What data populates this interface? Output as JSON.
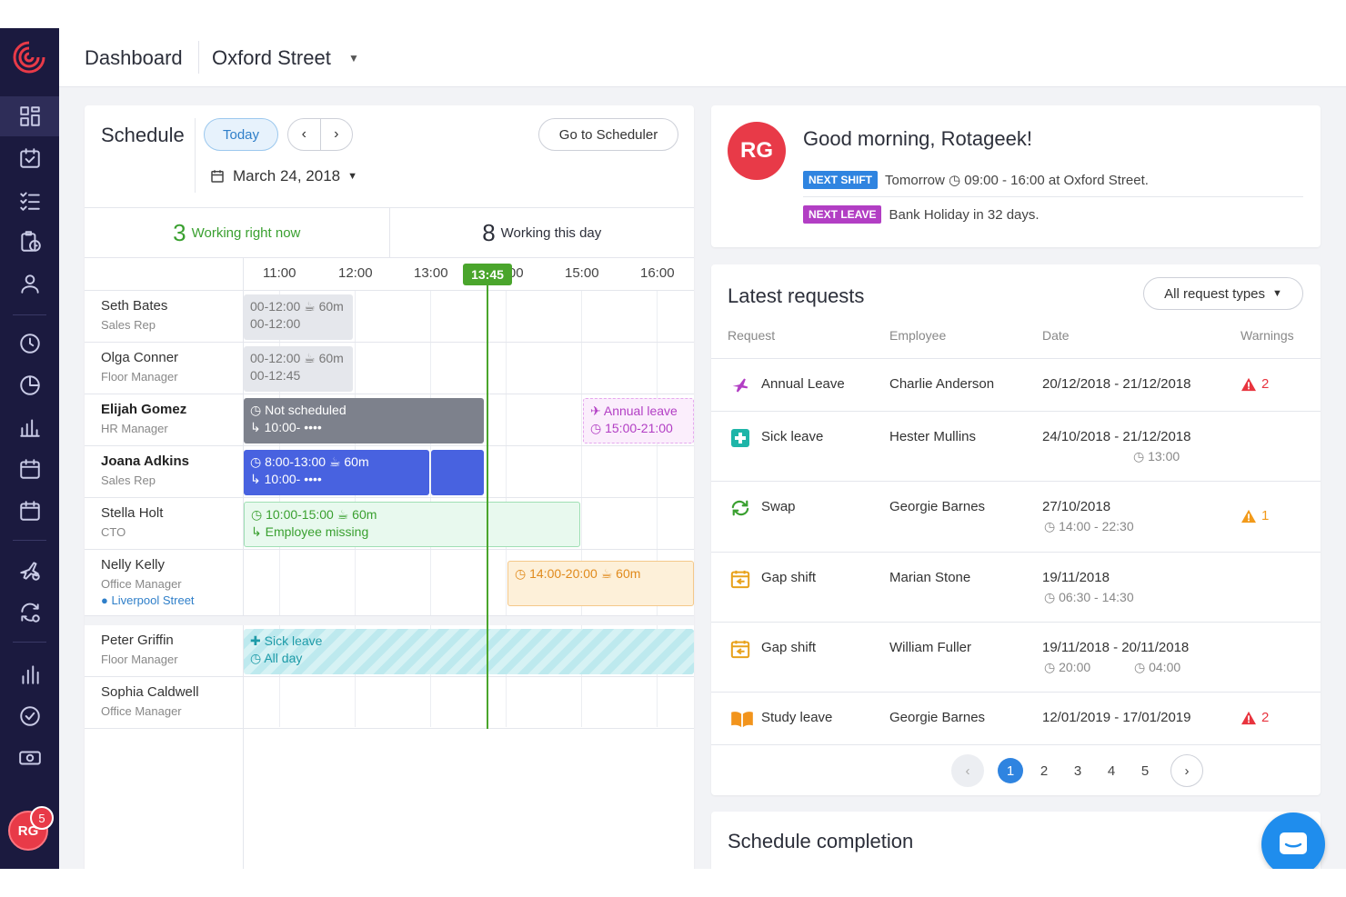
{
  "header": {
    "title": "Dashboard",
    "location": "Oxford Street"
  },
  "user": {
    "initials": "RG",
    "notifications": "5"
  },
  "schedule": {
    "title": "Schedule",
    "today_label": "Today",
    "goto_label": "Go to Scheduler",
    "date": "March 24, 2018",
    "working_now_count": "3",
    "working_now_label": "Working right now",
    "working_day_count": "8",
    "working_day_label": "Working this day",
    "hours": [
      "11:00",
      "12:00",
      "13:00",
      "14:00",
      "15:00",
      "16:00"
    ],
    "now_time": "13:45",
    "employees": [
      {
        "name": "Seth Bates",
        "role": "Sales Rep",
        "shift_line1": "00-12:00  ☕ 60m",
        "shift_line2": "00-12:00"
      },
      {
        "name": "Olga Conner",
        "role": "Floor Manager",
        "shift_line1": "00-12:00  ☕ 60m",
        "shift_line2": "00-12:45"
      },
      {
        "name": "Elijah Gomez",
        "role": "HR Manager",
        "shift_line1": "Not scheduled",
        "shift_line2": "10:00- ••••",
        "leave_line1": "Annual leave",
        "leave_line2": "15:00-21:00"
      },
      {
        "name": "Joana Adkins",
        "role": "Sales Rep",
        "shift_line1": "8:00-13:00  ☕ 60m",
        "shift_line2": "10:00- ••••"
      },
      {
        "name": "Stella Holt",
        "role": "CTO",
        "shift_line1": "10:00-15:00  ☕ 60m",
        "shift_line2": "Employee missing"
      },
      {
        "name": "Nelly Kelly",
        "role": "Office Manager",
        "location": "Liverpool Street",
        "shift_line1": "14:00-20:00  ☕ 60m"
      },
      {
        "name": "Peter Griffin",
        "role": "Floor Manager",
        "shift_line1": "Sick leave",
        "shift_line2": "All day"
      },
      {
        "name": "Sophia Caldwell",
        "role": "Office Manager"
      }
    ]
  },
  "greeting": {
    "title": "Good morning, Rotageek!",
    "next_shift_tag": "NEXT SHIFT",
    "next_shift_text": "Tomorrow  ◷ 09:00 - 16:00 at Oxford Street.",
    "next_leave_tag": "NEXT LEAVE",
    "next_leave_text": "Bank Holiday in 32 days."
  },
  "requests": {
    "title": "Latest requests",
    "filter_label": "All request types",
    "columns": [
      "Request",
      "Employee",
      "Date",
      "Warnings"
    ],
    "rows": [
      {
        "icon": "plane-icon",
        "type": "Annual Leave",
        "employee": "Charlie Anderson",
        "date": "20/12/2018 - 21/12/2018",
        "sub": "",
        "sub2": "",
        "warnings": "2",
        "warn_color": "#e8343e"
      },
      {
        "icon": "medical-cross-icon",
        "type": "Sick leave",
        "employee": "Hester Mullins",
        "date": "24/10/2018 - 21/12/2018",
        "sub": "◷ 13:00",
        "sub2": "",
        "warnings": "",
        "warn_color": ""
      },
      {
        "icon": "swap-icon",
        "type": "Swap",
        "employee": "Georgie Barnes",
        "date": "27/10/2018",
        "sub": "◷ 14:00 - 22:30",
        "sub2": "",
        "warnings": "1",
        "warn_color": "#f29a1a"
      },
      {
        "icon": "gap-shift-icon",
        "type": "Gap shift",
        "employee": "Marian Stone",
        "date": "19/11/2018",
        "sub": "◷ 06:30 - 14:30",
        "sub2": "",
        "warnings": "",
        "warn_color": ""
      },
      {
        "icon": "gap-shift-icon",
        "type": "Gap shift",
        "employee": "William Fuller",
        "date": "19/11/2018 - 20/11/2018",
        "sub": "◷ 20:00",
        "sub2": "◷ 04:00",
        "warnings": "",
        "warn_color": ""
      },
      {
        "icon": "book-icon",
        "type": "Study leave",
        "employee": "Georgie Barnes",
        "date": "12/01/2019 - 17/01/2019",
        "sub": "",
        "sub2": "",
        "warnings": "2",
        "warn_color": "#e8343e"
      }
    ],
    "pages": [
      "1",
      "2",
      "3",
      "4",
      "5"
    ],
    "current_page": "1"
  },
  "completion": {
    "title": "Schedule completion"
  },
  "colors": {
    "sidebar": "#1b1a3f",
    "accent": "#2f84e0",
    "brand": "#e83a48",
    "green": "#4aa52c"
  }
}
